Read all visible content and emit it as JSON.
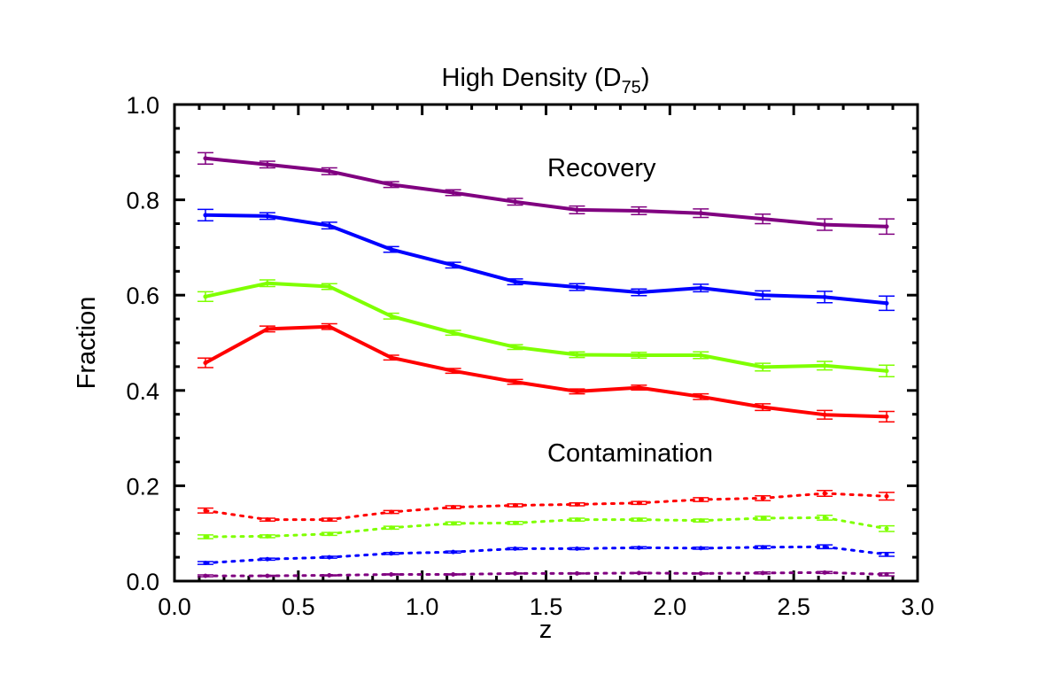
{
  "chart_data": {
    "type": "line",
    "title": "High Density (D",
    "title_subscript": "75",
    "title_close": ")",
    "xlabel": "z",
    "ylabel": "Fraction",
    "xlim": [
      0.0,
      3.0
    ],
    "ylim": [
      0.0,
      1.0
    ],
    "x_ticks": [
      "0.0",
      "0.5",
      "1.0",
      "1.5",
      "2.0",
      "2.5",
      "3.0"
    ],
    "y_ticks": [
      "0.0",
      "0.2",
      "0.4",
      "0.6",
      "0.8",
      "1.0"
    ],
    "grid": false,
    "annotations": {
      "recovery": "Recovery",
      "contamination": "Contamination"
    },
    "x": [
      0.125,
      0.375,
      0.625,
      0.875,
      1.125,
      1.375,
      1.625,
      1.875,
      2.125,
      2.375,
      2.625,
      2.875
    ],
    "series": [
      {
        "name": "recovery-purple",
        "group": "Recovery",
        "color": "#800080",
        "style": "solid",
        "values": [
          0.887,
          0.874,
          0.86,
          0.832,
          0.815,
          0.796,
          0.779,
          0.777,
          0.772,
          0.76,
          0.748,
          0.744
        ],
        "errors": [
          0.012,
          0.007,
          0.007,
          0.006,
          0.006,
          0.007,
          0.008,
          0.008,
          0.009,
          0.01,
          0.012,
          0.016
        ]
      },
      {
        "name": "recovery-blue",
        "group": "Recovery",
        "color": "#0000ff",
        "style": "solid",
        "values": [
          0.768,
          0.766,
          0.746,
          0.696,
          0.663,
          0.628,
          0.617,
          0.606,
          0.615,
          0.6,
          0.596,
          0.583
        ],
        "errors": [
          0.012,
          0.007,
          0.007,
          0.006,
          0.006,
          0.006,
          0.007,
          0.007,
          0.008,
          0.009,
          0.012,
          0.015
        ]
      },
      {
        "name": "recovery-green",
        "group": "Recovery",
        "color": "#7fff00",
        "style": "solid",
        "values": [
          0.597,
          0.625,
          0.618,
          0.556,
          0.521,
          0.491,
          0.475,
          0.474,
          0.474,
          0.449,
          0.452,
          0.441
        ],
        "errors": [
          0.01,
          0.007,
          0.006,
          0.006,
          0.005,
          0.005,
          0.006,
          0.006,
          0.007,
          0.008,
          0.009,
          0.012
        ]
      },
      {
        "name": "recovery-red",
        "group": "Recovery",
        "color": "#ff0000",
        "style": "solid",
        "values": [
          0.458,
          0.529,
          0.534,
          0.469,
          0.441,
          0.418,
          0.398,
          0.406,
          0.387,
          0.365,
          0.349,
          0.345
        ],
        "errors": [
          0.01,
          0.006,
          0.006,
          0.005,
          0.005,
          0.005,
          0.005,
          0.005,
          0.006,
          0.007,
          0.009,
          0.011
        ]
      },
      {
        "name": "contamination-red",
        "group": "Contamination",
        "color": "#ff0000",
        "style": "dotted",
        "values": [
          0.148,
          0.129,
          0.129,
          0.145,
          0.155,
          0.159,
          0.161,
          0.164,
          0.171,
          0.174,
          0.184,
          0.178
        ],
        "errors": [
          0.005,
          0.003,
          0.003,
          0.003,
          0.003,
          0.003,
          0.003,
          0.003,
          0.004,
          0.005,
          0.006,
          0.008
        ]
      },
      {
        "name": "contamination-green",
        "group": "Contamination",
        "color": "#7fff00",
        "style": "dotted",
        "values": [
          0.093,
          0.094,
          0.099,
          0.112,
          0.121,
          0.122,
          0.129,
          0.129,
          0.127,
          0.132,
          0.133,
          0.11
        ],
        "errors": [
          0.004,
          0.003,
          0.003,
          0.003,
          0.003,
          0.003,
          0.003,
          0.003,
          0.003,
          0.004,
          0.005,
          0.006
        ]
      },
      {
        "name": "contamination-blue",
        "group": "Contamination",
        "color": "#0000ff",
        "style": "dotted",
        "values": [
          0.038,
          0.046,
          0.05,
          0.058,
          0.061,
          0.068,
          0.068,
          0.07,
          0.069,
          0.071,
          0.072,
          0.056
        ],
        "errors": [
          0.003,
          0.002,
          0.002,
          0.002,
          0.002,
          0.002,
          0.002,
          0.002,
          0.002,
          0.003,
          0.004,
          0.004
        ]
      },
      {
        "name": "contamination-purple",
        "group": "Contamination",
        "color": "#800080",
        "style": "dotted",
        "values": [
          0.011,
          0.011,
          0.012,
          0.014,
          0.014,
          0.016,
          0.016,
          0.017,
          0.016,
          0.017,
          0.018,
          0.014
        ],
        "errors": [
          0.002,
          0.001,
          0.001,
          0.001,
          0.001,
          0.001,
          0.001,
          0.001,
          0.001,
          0.002,
          0.002,
          0.003
        ]
      }
    ]
  }
}
